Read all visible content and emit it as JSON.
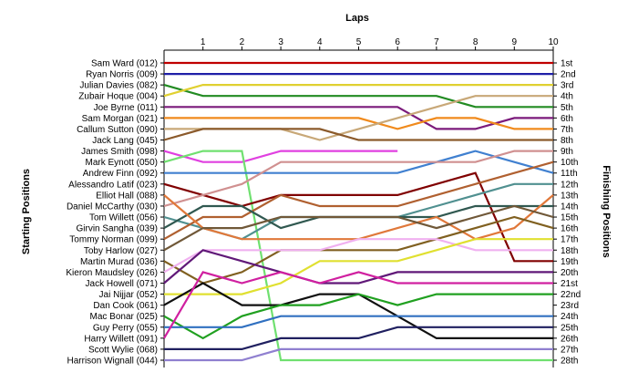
{
  "chart_data": {
    "type": "line",
    "title": "",
    "xlabel": "Laps",
    "ylabel_left": "Starting Positions",
    "ylabel_right": "Finishing Positions",
    "x": [
      0,
      1,
      2,
      3,
      4,
      5,
      6,
      7,
      8,
      9,
      10
    ],
    "lap_ticks": [
      "1",
      "2",
      "3",
      "4",
      "5",
      "6",
      "7",
      "8",
      "9",
      "10"
    ],
    "position_range": [
      1,
      28
    ],
    "finish_labels": [
      "1st",
      "2nd",
      "3rd",
      "4th",
      "5th",
      "6th",
      "7th",
      "8th",
      "9th",
      "10th",
      "11th",
      "12th",
      "13th",
      "14th",
      "15th",
      "16th",
      "17th",
      "18th",
      "19th",
      "20th",
      "21st",
      "22nd",
      "23rd",
      "24th",
      "25th",
      "26th",
      "27th",
      "28th"
    ],
    "grid": false,
    "series": [
      {
        "name": "Sam Ward (012)",
        "color": "#c00000",
        "positions": [
          1,
          1,
          1,
          1,
          1,
          1,
          1,
          1,
          1,
          1,
          1
        ]
      },
      {
        "name": "Ryan Norris (009)",
        "color": "#1f1fa8",
        "positions": [
          2,
          2,
          2,
          2,
          2,
          2,
          2,
          2,
          2,
          2,
          2
        ]
      },
      {
        "name": "Julian Davies (082)",
        "color": "#228b22",
        "positions": [
          3,
          4,
          4,
          4,
          4,
          4,
          4,
          4,
          5,
          5,
          5
        ]
      },
      {
        "name": "Zubair Hoque (004)",
        "color": "#e0d030",
        "positions": [
          4,
          3,
          3,
          3,
          3,
          3,
          3,
          3,
          3,
          3,
          3
        ]
      },
      {
        "name": "Joe Byrne (011)",
        "color": "#7b1a7b",
        "positions": [
          5,
          5,
          5,
          5,
          5,
          5,
          5,
          7,
          7,
          6,
          6
        ]
      },
      {
        "name": "Sam Morgan (021)",
        "color": "#f08a1c",
        "positions": [
          6,
          6,
          6,
          6,
          6,
          6,
          7,
          6,
          6,
          7,
          7
        ]
      },
      {
        "name": "Callum Sutton (090)",
        "color": "#c8a878",
        "positions": [
          7,
          7,
          7,
          7,
          8,
          7,
          6,
          5,
          4,
          4,
          4
        ]
      },
      {
        "name": "Jack Lang (045)",
        "color": "#8b5a2b",
        "positions": [
          8,
          7,
          7,
          7,
          7,
          8,
          8,
          8,
          8,
          8,
          8
        ]
      },
      {
        "name": "James Smith (098)",
        "color": "#e040e0",
        "positions": [
          9,
          10,
          10,
          9,
          9,
          9,
          9
        ]
      },
      {
        "name": "Mark Eynott (050)",
        "color": "#70e070",
        "positions": [
          10,
          9,
          9,
          28,
          28,
          28,
          28,
          28,
          28,
          28,
          28
        ]
      },
      {
        "name": "Andrew Finn (092)",
        "color": "#4080d0",
        "positions": [
          11,
          11,
          11,
          11,
          11,
          11,
          11,
          10,
          9,
          10,
          11
        ]
      },
      {
        "name": "Alessandro Latif (023)",
        "color": "#800000",
        "positions": [
          12,
          13,
          14,
          13,
          13,
          13,
          13,
          12,
          11,
          19,
          19
        ]
      },
      {
        "name": "Daniel McCarthy (030)",
        "color": "#d09090",
        "positions": [
          14,
          13,
          12,
          10,
          10,
          10,
          10,
          10,
          10,
          9,
          9
        ]
      },
      {
        "name": "Tom Willett (056)",
        "color": "#509090",
        "positions": [
          15,
          16,
          17,
          15,
          15,
          15,
          15,
          14,
          13,
          12,
          12
        ]
      },
      {
        "name": "Tommy Norman (099)",
        "color": "#b06030",
        "positions": [
          17,
          15,
          15,
          13,
          14,
          14,
          14,
          13,
          12,
          11,
          10
        ]
      },
      {
        "name": "Girvin Sangha (039)",
        "color": "#305850",
        "positions": [
          16,
          14,
          14,
          16,
          15,
          15,
          15,
          15,
          14,
          14,
          14
        ]
      },
      {
        "name": "Elliot Hall (088)",
        "color": "#e0783a",
        "positions": [
          13,
          16,
          17,
          17,
          17,
          17,
          16,
          15,
          17,
          16,
          13
        ]
      },
      {
        "name": "Toby Harlow (027)",
        "color": "#705838",
        "positions": [
          18,
          16,
          16,
          15,
          15,
          15,
          15,
          16,
          15,
          14,
          15
        ]
      },
      {
        "name": "Martin Murad (036)",
        "color": "#806020",
        "positions": [
          19,
          21,
          20,
          18,
          18,
          18,
          18,
          17,
          16,
          15,
          16
        ]
      },
      {
        "name": "Kieron Maudsley (026)",
        "color": "#f0b0f0",
        "positions": [
          20,
          18,
          18,
          18,
          18,
          17,
          17,
          17,
          18,
          18,
          18
        ]
      },
      {
        "name": "Jack Howell (071)",
        "color": "#601878",
        "positions": [
          21,
          18,
          19,
          20,
          21,
          21,
          20,
          20,
          20,
          20,
          20
        ]
      },
      {
        "name": "Jai Nijjar (052)",
        "color": "#e0e030",
        "positions": [
          22,
          22,
          22,
          21,
          19,
          19,
          19,
          18,
          17,
          17,
          17
        ]
      },
      {
        "name": "Dan Cook (061)",
        "color": "#101010",
        "positions": [
          23,
          21,
          23,
          23,
          22,
          22,
          24,
          26,
          26,
          26,
          26
        ]
      },
      {
        "name": "Mac Bonar (025)",
        "color": "#20a020",
        "positions": [
          24,
          26,
          24,
          23,
          23,
          22,
          23,
          22,
          22,
          22,
          22
        ]
      },
      {
        "name": "Guy Perry (055)",
        "color": "#3070c0",
        "positions": [
          25,
          25,
          25,
          24,
          24,
          24,
          24,
          24,
          24,
          24,
          24
        ]
      },
      {
        "name": "Harry Willett (091)",
        "color": "#d020a0",
        "positions": [
          26,
          20,
          21,
          20,
          21,
          20,
          21,
          21,
          21,
          21,
          21
        ]
      },
      {
        "name": "Scott Wylie (068)",
        "color": "#202060",
        "positions": [
          27,
          27,
          27,
          26,
          26,
          26,
          25,
          25,
          25,
          25,
          25
        ]
      },
      {
        "name": "Harrison Wignall (044)",
        "color": "#9080d0",
        "positions": [
          28,
          28,
          28,
          27,
          27,
          27,
          27,
          27,
          27,
          27,
          27
        ]
      }
    ]
  }
}
